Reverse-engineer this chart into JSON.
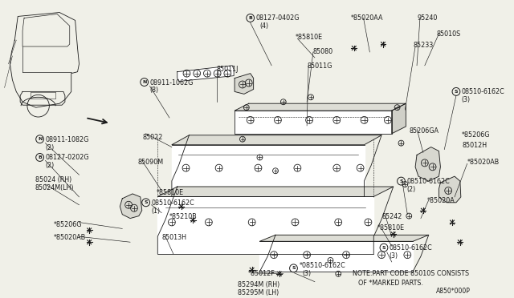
{
  "bg_color": "#f0f0e8",
  "line_color": "#1a1a1a",
  "note_line1": "NOTE:PART CODE 85010S CONSISTS",
  "note_line2": "OF *MARKED PARTS.",
  "diagram_code": "A850*000P",
  "figsize": [
    6.4,
    3.72
  ],
  "dpi": 100
}
